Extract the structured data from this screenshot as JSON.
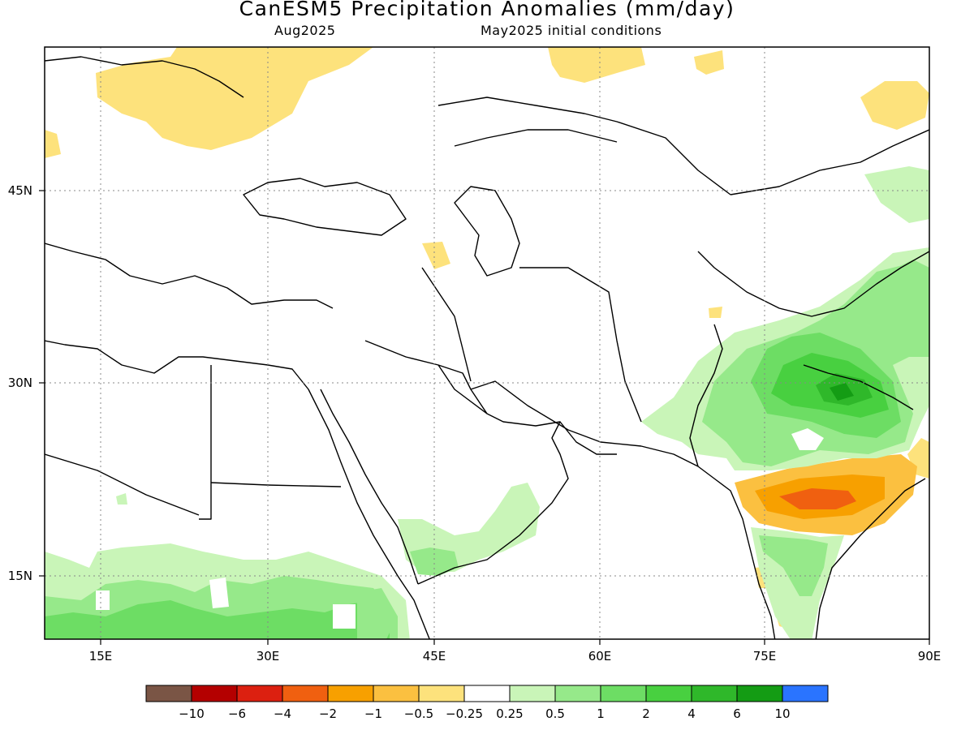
{
  "title": "CanESM5 Precipitation Anomalies (mm/day)",
  "valid_month": "Aug2025",
  "initial_conditions": "May2025 initial conditions",
  "axes": {
    "lon_ticks": [
      "15E",
      "30E",
      "45E",
      "60E",
      "75E",
      "90E"
    ],
    "lat_ticks": [
      "45N",
      "30N",
      "15N"
    ],
    "lon_range_deg": [
      10,
      90
    ],
    "lat_range_deg": [
      10,
      56
    ],
    "gridlines": "dotted"
  },
  "colorbar": {
    "labels": [
      "−10",
      "−6",
      "−4",
      "−2",
      "−1",
      "−0.5",
      "−0.25",
      "0.25",
      "0.5",
      "1",
      "2",
      "4",
      "6",
      "10"
    ],
    "colors": [
      "#7a5545",
      "#b40000",
      "#dc2010",
      "#f06010",
      "#f7a000",
      "#fbc040",
      "#fde27c",
      "#ffffff",
      "#c9f5b8",
      "#96e98a",
      "#6ddd64",
      "#48d040",
      "#2fb82a",
      "#149c14",
      "#2a74ff"
    ]
  },
  "chart_data": {
    "type": "heatmap",
    "variable": "Precipitation Anomalies",
    "units": "mm/day",
    "model": "CanESM5",
    "valid": "Aug2025",
    "init": "May2025",
    "region": {
      "lon": [
        10,
        90
      ],
      "lat": [
        10,
        56
      ]
    },
    "features": [
      {
        "region": "eastern Europe / Poland–Ukraine",
        "anomaly_range": [
          -0.5,
          -0.25
        ]
      },
      {
        "region": "western Siberia north of Kazakhstan",
        "anomaly_range": [
          -0.5,
          -0.25
        ]
      },
      {
        "region": "north Indian plains / Nepal",
        "anomaly_range": [
          0.5,
          6
        ]
      },
      {
        "region": "Tibetan Plateau",
        "anomaly_range": [
          0.25,
          2
        ]
      },
      {
        "region": "central India",
        "anomaly_range": [
          -4,
          -0.25
        ]
      },
      {
        "region": "Sahel / Ethiopian highlands",
        "anomaly_range": [
          0.25,
          2
        ]
      },
      {
        "region": "southern Arabia / Yemen",
        "anomaly_range": [
          0.25,
          1
        ]
      },
      {
        "region": "southern India",
        "anomaly_range": [
          0.25,
          2
        ]
      }
    ]
  }
}
